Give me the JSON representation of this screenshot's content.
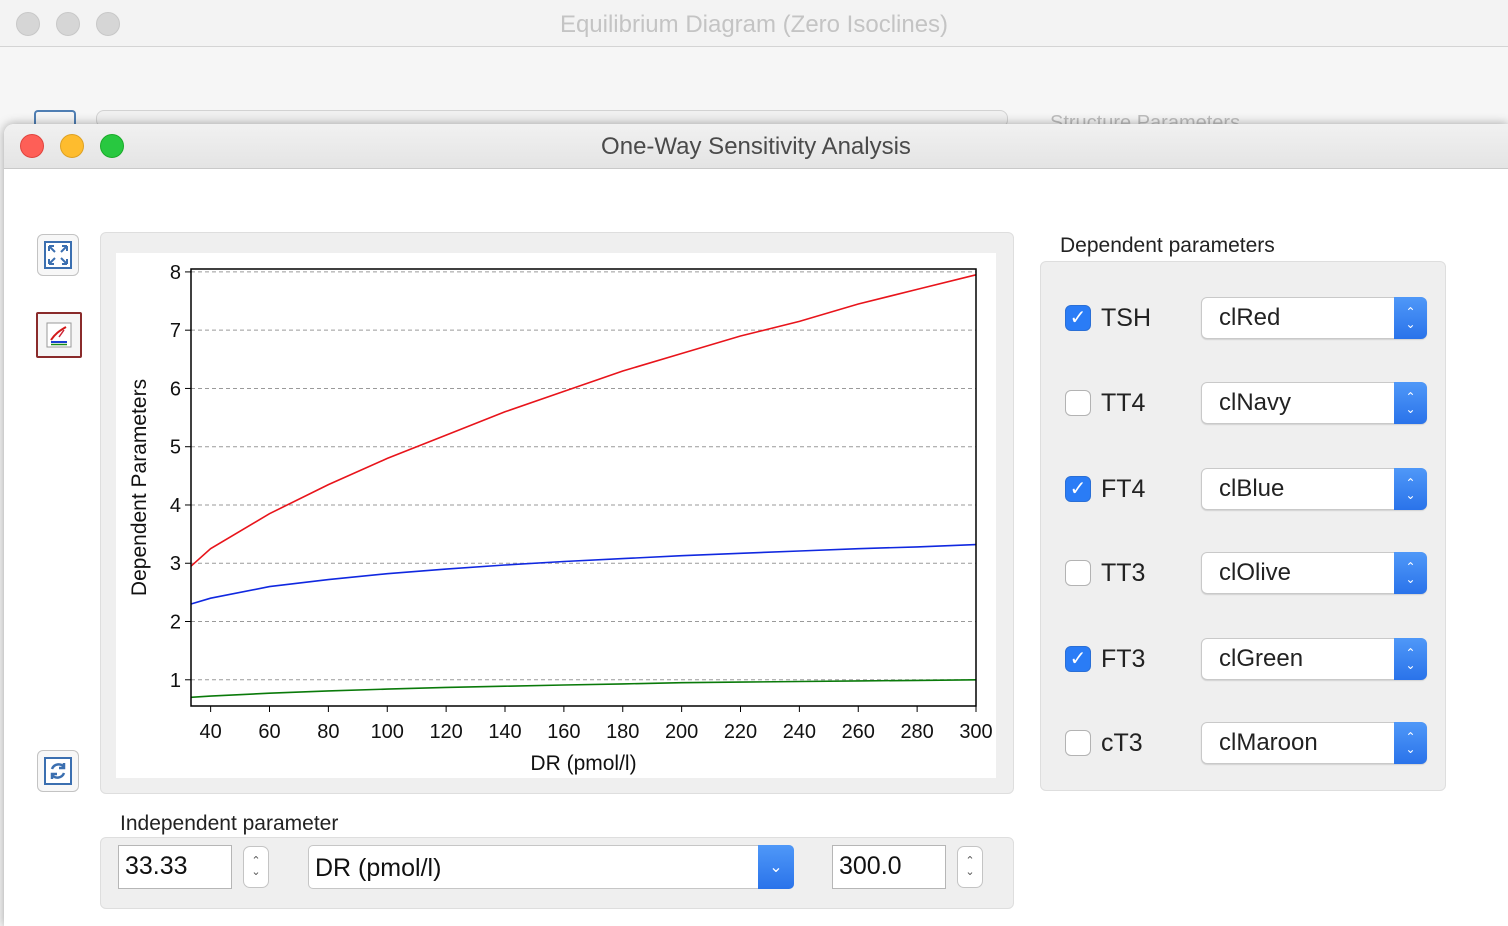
{
  "background_window": {
    "title": "Equilibrium Diagram (Zero Isoclines)",
    "side_label": "Structure Parameters"
  },
  "window": {
    "title": "One-Way Sensitivity Analysis"
  },
  "toolbar": {
    "zoom_icon": "expand-arrows-icon",
    "chart_icon": "chart-edit-icon",
    "refresh_icon": "refresh-icon"
  },
  "dependent": {
    "title": "Dependent parameters",
    "items": [
      {
        "label": "TSH",
        "checked": true,
        "color_name": "clRed",
        "color": "#e8141b"
      },
      {
        "label": "TT4",
        "checked": false,
        "color_name": "clNavy",
        "color": "#000080"
      },
      {
        "label": "FT4",
        "checked": true,
        "color_name": "clBlue",
        "color": "#1028e0"
      },
      {
        "label": "TT3",
        "checked": false,
        "color_name": "clOlive",
        "color": "#808000"
      },
      {
        "label": "FT3",
        "checked": true,
        "color_name": "clGreen",
        "color": "#0a7a0a"
      },
      {
        "label": "cT3",
        "checked": false,
        "color_name": "clMaroon",
        "color": "#800000"
      }
    ]
  },
  "independent": {
    "title": "Independent parameter",
    "min_value": "33.33",
    "max_value": "300.0",
    "selected": "DR (pmol/l)"
  },
  "chart_data": {
    "type": "line",
    "xlabel": "DR (pmol/l)",
    "ylabel": "Dependent Parameters",
    "xlim": [
      33.33,
      300
    ],
    "ylim": [
      0.55,
      8.05
    ],
    "xticks": [
      40,
      60,
      80,
      100,
      120,
      140,
      160,
      180,
      200,
      220,
      240,
      260,
      280,
      300
    ],
    "yticks": [
      1,
      2,
      3,
      4,
      5,
      6,
      7,
      8
    ],
    "grid": "horizontal-dashed",
    "series": [
      {
        "color": "#e8141b",
        "x": [
          33.33,
          40,
          60,
          80,
          100,
          120,
          140,
          160,
          180,
          200,
          220,
          240,
          260,
          280,
          300
        ],
        "y": [
          2.95,
          3.25,
          3.85,
          4.35,
          4.8,
          5.2,
          5.6,
          5.95,
          6.3,
          6.6,
          6.9,
          7.15,
          7.45,
          7.7,
          7.95
        ]
      },
      {
        "color": "#1028e0",
        "x": [
          33.33,
          40,
          60,
          80,
          100,
          120,
          140,
          160,
          180,
          200,
          220,
          240,
          260,
          280,
          300
        ],
        "y": [
          2.3,
          2.4,
          2.6,
          2.72,
          2.82,
          2.9,
          2.97,
          3.03,
          3.08,
          3.13,
          3.17,
          3.21,
          3.25,
          3.28,
          3.32
        ]
      },
      {
        "color": "#0a7a0a",
        "x": [
          33.33,
          40,
          60,
          80,
          100,
          120,
          140,
          160,
          180,
          200,
          220,
          240,
          260,
          280,
          300
        ],
        "y": [
          0.7,
          0.72,
          0.77,
          0.81,
          0.84,
          0.87,
          0.89,
          0.91,
          0.93,
          0.95,
          0.96,
          0.97,
          0.98,
          0.99,
          1.0
        ]
      }
    ]
  }
}
